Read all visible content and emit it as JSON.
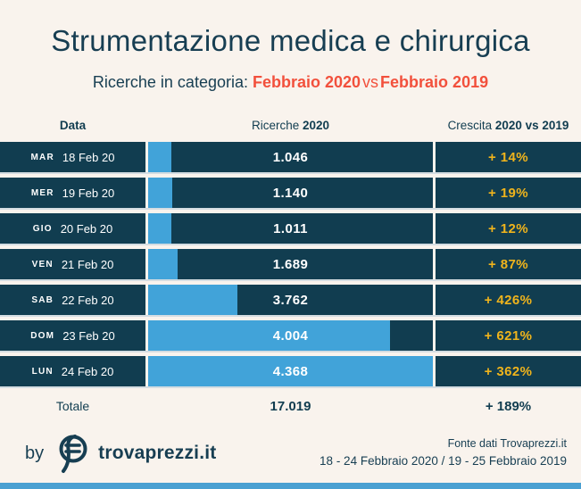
{
  "colors": {
    "background": "#f9f3ed",
    "navy": "#113d50",
    "bar_blue": "#41a3d9",
    "growth_yellow": "#f0b41c",
    "accent_red": "#f2503c"
  },
  "header": {
    "title": "Strumentazione medica e chirurgica",
    "subtitle_prefix": "Ricerche in categoria: ",
    "period_a": "Febbraio 2020",
    "vs_label": "vs",
    "period_b": "Febbraio 2019"
  },
  "table": {
    "columns": {
      "c1": "Data",
      "c2_regular": "Ricerche ",
      "c2_bold": "2020",
      "c3_regular": "Crescita ",
      "c3_bold": "2020 vs 2019"
    },
    "rows": [
      {
        "day": "MAR",
        "date": "18 Feb 20",
        "value": "1.046",
        "growth": "+ 14%",
        "bar_pct": 8.2
      },
      {
        "day": "MER",
        "date": "19 Feb 20",
        "value": "1.140",
        "growth": "+ 19%",
        "bar_pct": 8.6
      },
      {
        "day": "GIO",
        "date": "20 Feb 20",
        "value": "1.011",
        "growth": "+ 12%",
        "bar_pct": 8.2
      },
      {
        "day": "VEN",
        "date": "21 Feb 20",
        "value": "1.689",
        "growth": "+ 87%",
        "bar_pct": 10.3
      },
      {
        "day": "SAB",
        "date": "22 Feb 20",
        "value": "3.762",
        "growth": "+ 426%",
        "bar_pct": 31.3
      },
      {
        "day": "DOM",
        "date": "23 Feb 20",
        "value": "4.004",
        "growth": "+ 621%",
        "bar_pct": 85.0
      },
      {
        "day": "LUN",
        "date": "24 Feb 20",
        "value": "4.368",
        "growth": "+ 362%",
        "bar_pct": 100.0
      }
    ],
    "total": {
      "label": "Totale",
      "value": "17.019",
      "growth": "+ 189%"
    }
  },
  "footer": {
    "by_label": "by",
    "brand": "trovaprezzi.it",
    "source_line1": "Fonte dati Trovaprezzi.it",
    "source_line2": "18 - 24 Febbraio 2020 / 19 - 25 Febbraio 2019"
  },
  "chart_data": {
    "type": "bar",
    "orientation": "horizontal",
    "title": "Strumentazione medica e chirurgica",
    "subtitle": "Ricerche in categoria: Febbraio 2020 vs Febbraio 2019",
    "categories": [
      "MAR 18 Feb 20",
      "MER 19 Feb 20",
      "GIO 20 Feb 20",
      "VEN 21 Feb 20",
      "SAB 22 Feb 20",
      "DOM 23 Feb 20",
      "LUN 24 Feb 20"
    ],
    "series": [
      {
        "name": "Ricerche 2020",
        "values": [
          1046,
          1140,
          1011,
          1689,
          3762,
          4004,
          4368
        ]
      },
      {
        "name": "Crescita 2020 vs 2019 (%)",
        "values": [
          14,
          19,
          12,
          87,
          426,
          621,
          362
        ]
      }
    ],
    "totals": {
      "ricerche_2020": 17019,
      "crescita_pct": 189
    },
    "bar_length_pct_of_column": [
      8.2,
      8.6,
      8.2,
      10.3,
      31.3,
      85.0,
      100.0
    ],
    "legend_position": "none",
    "grid": false
  }
}
